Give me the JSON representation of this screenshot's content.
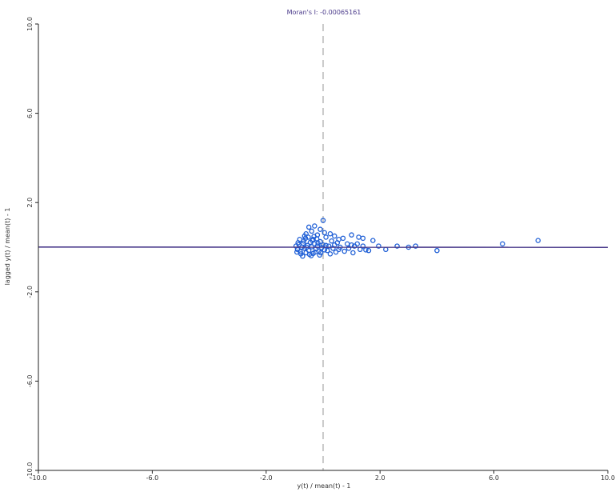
{
  "chart_data": {
    "type": "scatter",
    "title": "Moran's I: -0.00065161",
    "xlabel": "y(t) / mean(t) - 1",
    "ylabel": "lagged y(t) / mean(t) - 1",
    "xlim": [
      -10.0,
      10.0
    ],
    "ylim": [
      -10.0,
      10.0
    ],
    "x_ticks": [
      "-10.0",
      "-6.0",
      "-2.0",
      "2.0",
      "6.0",
      "10.0"
    ],
    "y_ticks": [
      "10.0",
      "6.0",
      "2.0",
      "-2.0",
      "-6.0",
      "-10.0"
    ],
    "x_tick_values": [
      -10,
      -6,
      -2,
      2,
      6,
      10
    ],
    "y_tick_values": [
      10,
      6,
      2,
      -2,
      -6,
      -10
    ],
    "reference_lines": {
      "x": 0,
      "y": 0,
      "style": "dashed"
    },
    "regression_line": {
      "slope": -0.00065161,
      "intercept": 0.0
    },
    "grid": false,
    "legend": "none",
    "colors": {
      "points": "#1f5fd6",
      "regression": "#4b3c8c",
      "reference": "#9a9a9a",
      "axes": "#222222"
    },
    "series": [
      {
        "values": [
          [
            -0.95,
            0.05
          ],
          [
            -0.9,
            -0.1
          ],
          [
            -0.85,
            0.12
          ],
          [
            -0.8,
            -0.2
          ],
          [
            -0.75,
            0.0
          ],
          [
            -0.7,
            0.18
          ],
          [
            -0.65,
            -0.05
          ],
          [
            -0.6,
            -0.25
          ],
          [
            -0.55,
            0.08
          ],
          [
            -0.5,
            -0.15
          ],
          [
            -0.45,
            0.22
          ],
          [
            -0.4,
            0.02
          ],
          [
            -0.35,
            -0.28
          ],
          [
            -0.3,
            0.15
          ],
          [
            -0.25,
            -0.08
          ],
          [
            -0.2,
            0.05
          ],
          [
            -0.15,
            -0.18
          ],
          [
            -0.1,
            0.25
          ],
          [
            -0.05,
            -0.02
          ],
          [
            0.0,
            0.1
          ],
          [
            -0.92,
            -0.22
          ],
          [
            -0.88,
            0.2
          ],
          [
            -0.78,
            -0.3
          ],
          [
            -0.68,
            0.28
          ],
          [
            -0.58,
            0.0
          ],
          [
            -0.48,
            -0.32
          ],
          [
            -0.38,
            0.3
          ],
          [
            -0.28,
            -0.22
          ],
          [
            -0.18,
            0.18
          ],
          [
            -0.08,
            -0.25
          ],
          [
            -0.82,
            0.35
          ],
          [
            -0.62,
            0.4
          ],
          [
            -0.42,
            -0.38
          ],
          [
            -0.22,
            0.38
          ],
          [
            -0.72,
            -0.4
          ],
          [
            -0.52,
            0.45
          ],
          [
            -0.32,
            0.48
          ],
          [
            -0.12,
            -0.35
          ],
          [
            0.05,
            -0.12
          ],
          [
            0.1,
            0.08
          ],
          [
            -0.6,
            0.6
          ],
          [
            -0.4,
            0.72
          ],
          [
            -0.2,
            0.55
          ],
          [
            0.05,
            0.65
          ],
          [
            -0.5,
            0.9
          ],
          [
            -0.3,
            0.95
          ],
          [
            0.1,
            0.45
          ],
          [
            -0.1,
            0.8
          ],
          [
            -0.35,
            0.35
          ],
          [
            -0.65,
            0.5
          ],
          [
            0.15,
            -0.15
          ],
          [
            0.2,
            0.05
          ],
          [
            0.25,
            -0.3
          ],
          [
            0.3,
            0.28
          ],
          [
            0.35,
            -0.05
          ],
          [
            0.4,
            0.1
          ],
          [
            0.45,
            -0.22
          ],
          [
            0.5,
            0.2
          ],
          [
            0.55,
            -0.1
          ],
          [
            0.6,
            0.0
          ],
          [
            0.0,
            1.2
          ],
          [
            0.25,
            0.6
          ],
          [
            0.4,
            0.5
          ],
          [
            0.55,
            0.35
          ],
          [
            0.7,
            0.4
          ],
          [
            0.75,
            -0.18
          ],
          [
            0.85,
            0.15
          ],
          [
            0.9,
            -0.05
          ],
          [
            1.0,
            0.1
          ],
          [
            1.05,
            -0.25
          ],
          [
            1.1,
            0.05
          ],
          [
            1.2,
            0.15
          ],
          [
            1.3,
            -0.1
          ],
          [
            1.4,
            0.05
          ],
          [
            1.5,
            -0.12
          ],
          [
            1.0,
            0.55
          ],
          [
            1.25,
            0.45
          ],
          [
            1.4,
            0.4
          ],
          [
            1.6,
            -0.15
          ],
          [
            1.75,
            0.3
          ],
          [
            1.95,
            0.05
          ],
          [
            2.2,
            -0.1
          ],
          [
            2.6,
            0.05
          ],
          [
            3.0,
            0.0
          ],
          [
            3.25,
            0.05
          ],
          [
            4.0,
            -0.15
          ],
          [
            6.3,
            0.15
          ],
          [
            7.55,
            0.3
          ]
        ]
      }
    ]
  }
}
